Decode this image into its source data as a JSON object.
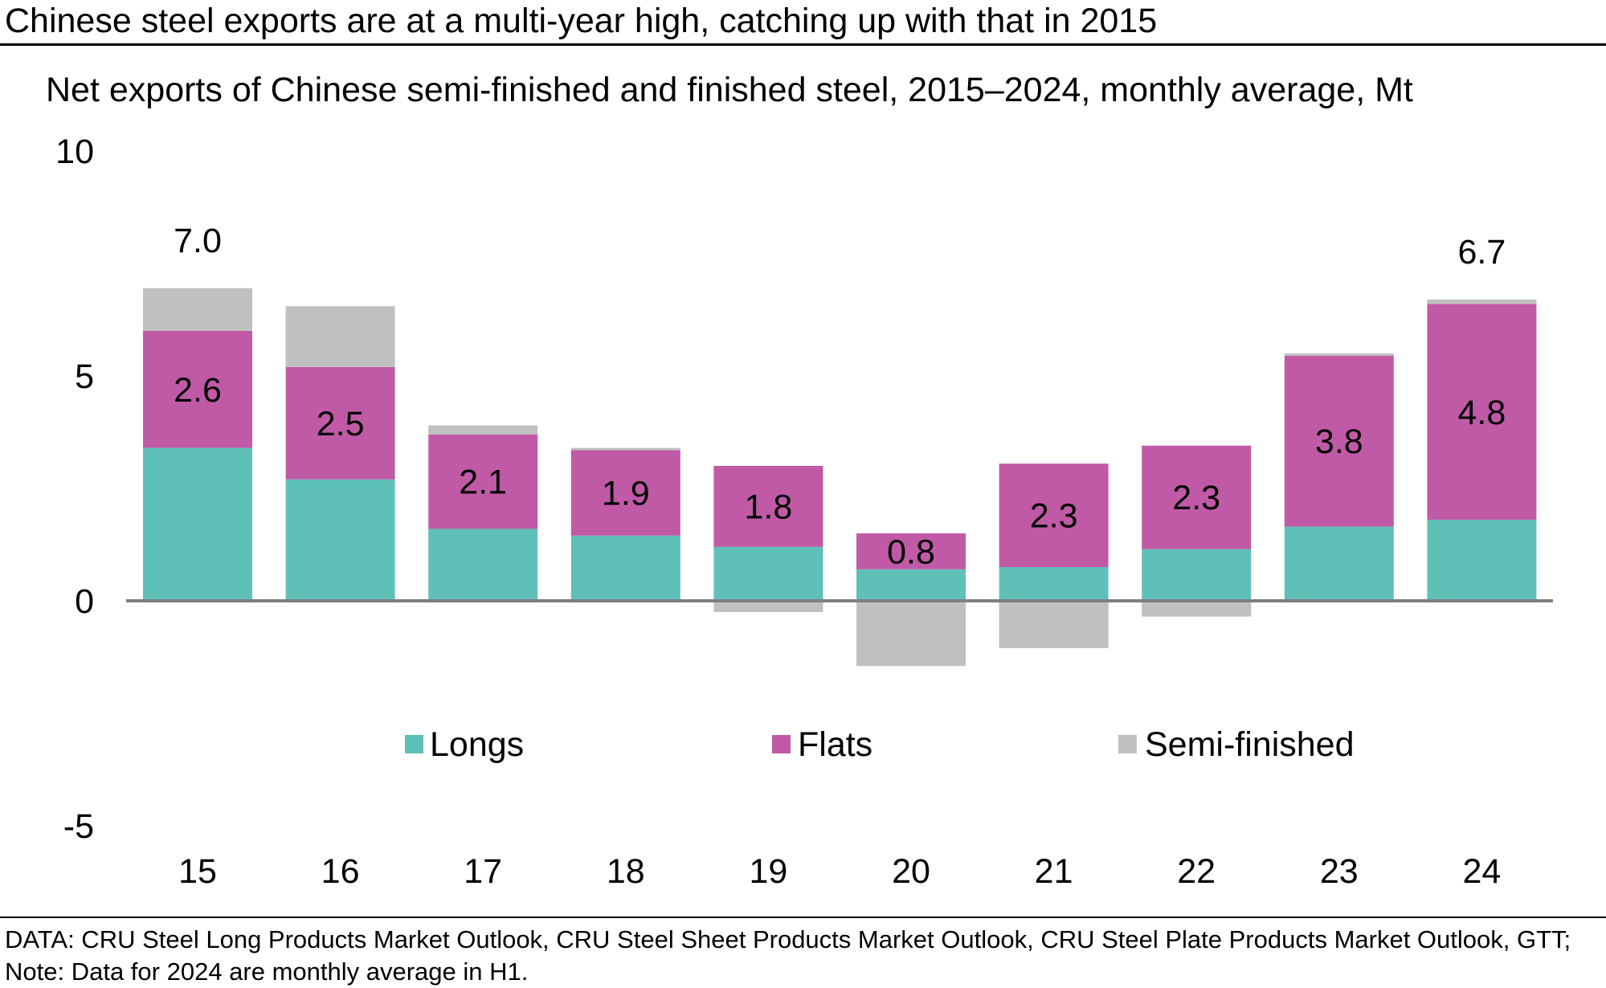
{
  "header": {
    "title": "Chinese steel exports are at a multi-year high, catching up with that in 2015",
    "subtitle": "Net exports of Chinese semi-finished and finished steel, 2015–2024, monthly average, Mt"
  },
  "footer": {
    "source": "DATA: CRU Steel Long Products Market Outlook, CRU Steel Sheet Products Market Outlook, CRU Steel Plate Products Market Outlook, GTT; Note: Data for 2024 are monthly average in H1."
  },
  "colors": {
    "longs": "#5fc0b8",
    "flats": "#c05aa6",
    "semi": "#c0c0c0",
    "axis": "#7f7f7f"
  },
  "chart_data": {
    "type": "bar",
    "stacked": true,
    "categories": [
      "15",
      "16",
      "17",
      "18",
      "19",
      "20",
      "21",
      "22",
      "23",
      "24"
    ],
    "series": [
      {
        "name": "Longs",
        "values": [
          3.4,
          2.7,
          1.6,
          1.45,
          1.2,
          0.7,
          0.75,
          1.15,
          1.65,
          1.8
        ]
      },
      {
        "name": "Flats",
        "values": [
          2.6,
          2.5,
          2.1,
          1.9,
          1.8,
          0.8,
          2.3,
          2.3,
          3.8,
          4.8
        ]
      },
      {
        "name": "Semi-finished",
        "values": [
          0.95,
          1.35,
          0.2,
          0.05,
          -0.25,
          -1.45,
          -1.05,
          -0.35,
          0.05,
          0.1
        ]
      }
    ],
    "segment_labels": [
      "2.6",
      "2.5",
      "2.1",
      "1.9",
      "1.8",
      "0.8",
      "2.3",
      "2.3",
      "3.8",
      "4.8"
    ],
    "total_labels": [
      {
        "index": 0,
        "text": "7.0"
      },
      {
        "index": 9,
        "text": "6.7"
      }
    ],
    "yticks": [
      "10",
      "5",
      "0",
      "-5"
    ],
    "ylim": [
      -5,
      10
    ],
    "title": "Net exports of Chinese semi-finished and finished steel, 2015–2024, monthly average, Mt",
    "xlabel": "",
    "ylabel": "",
    "legend": [
      "Longs",
      "Flats",
      "Semi-finished"
    ],
    "legend_position": "bottom-center",
    "grid": false
  }
}
